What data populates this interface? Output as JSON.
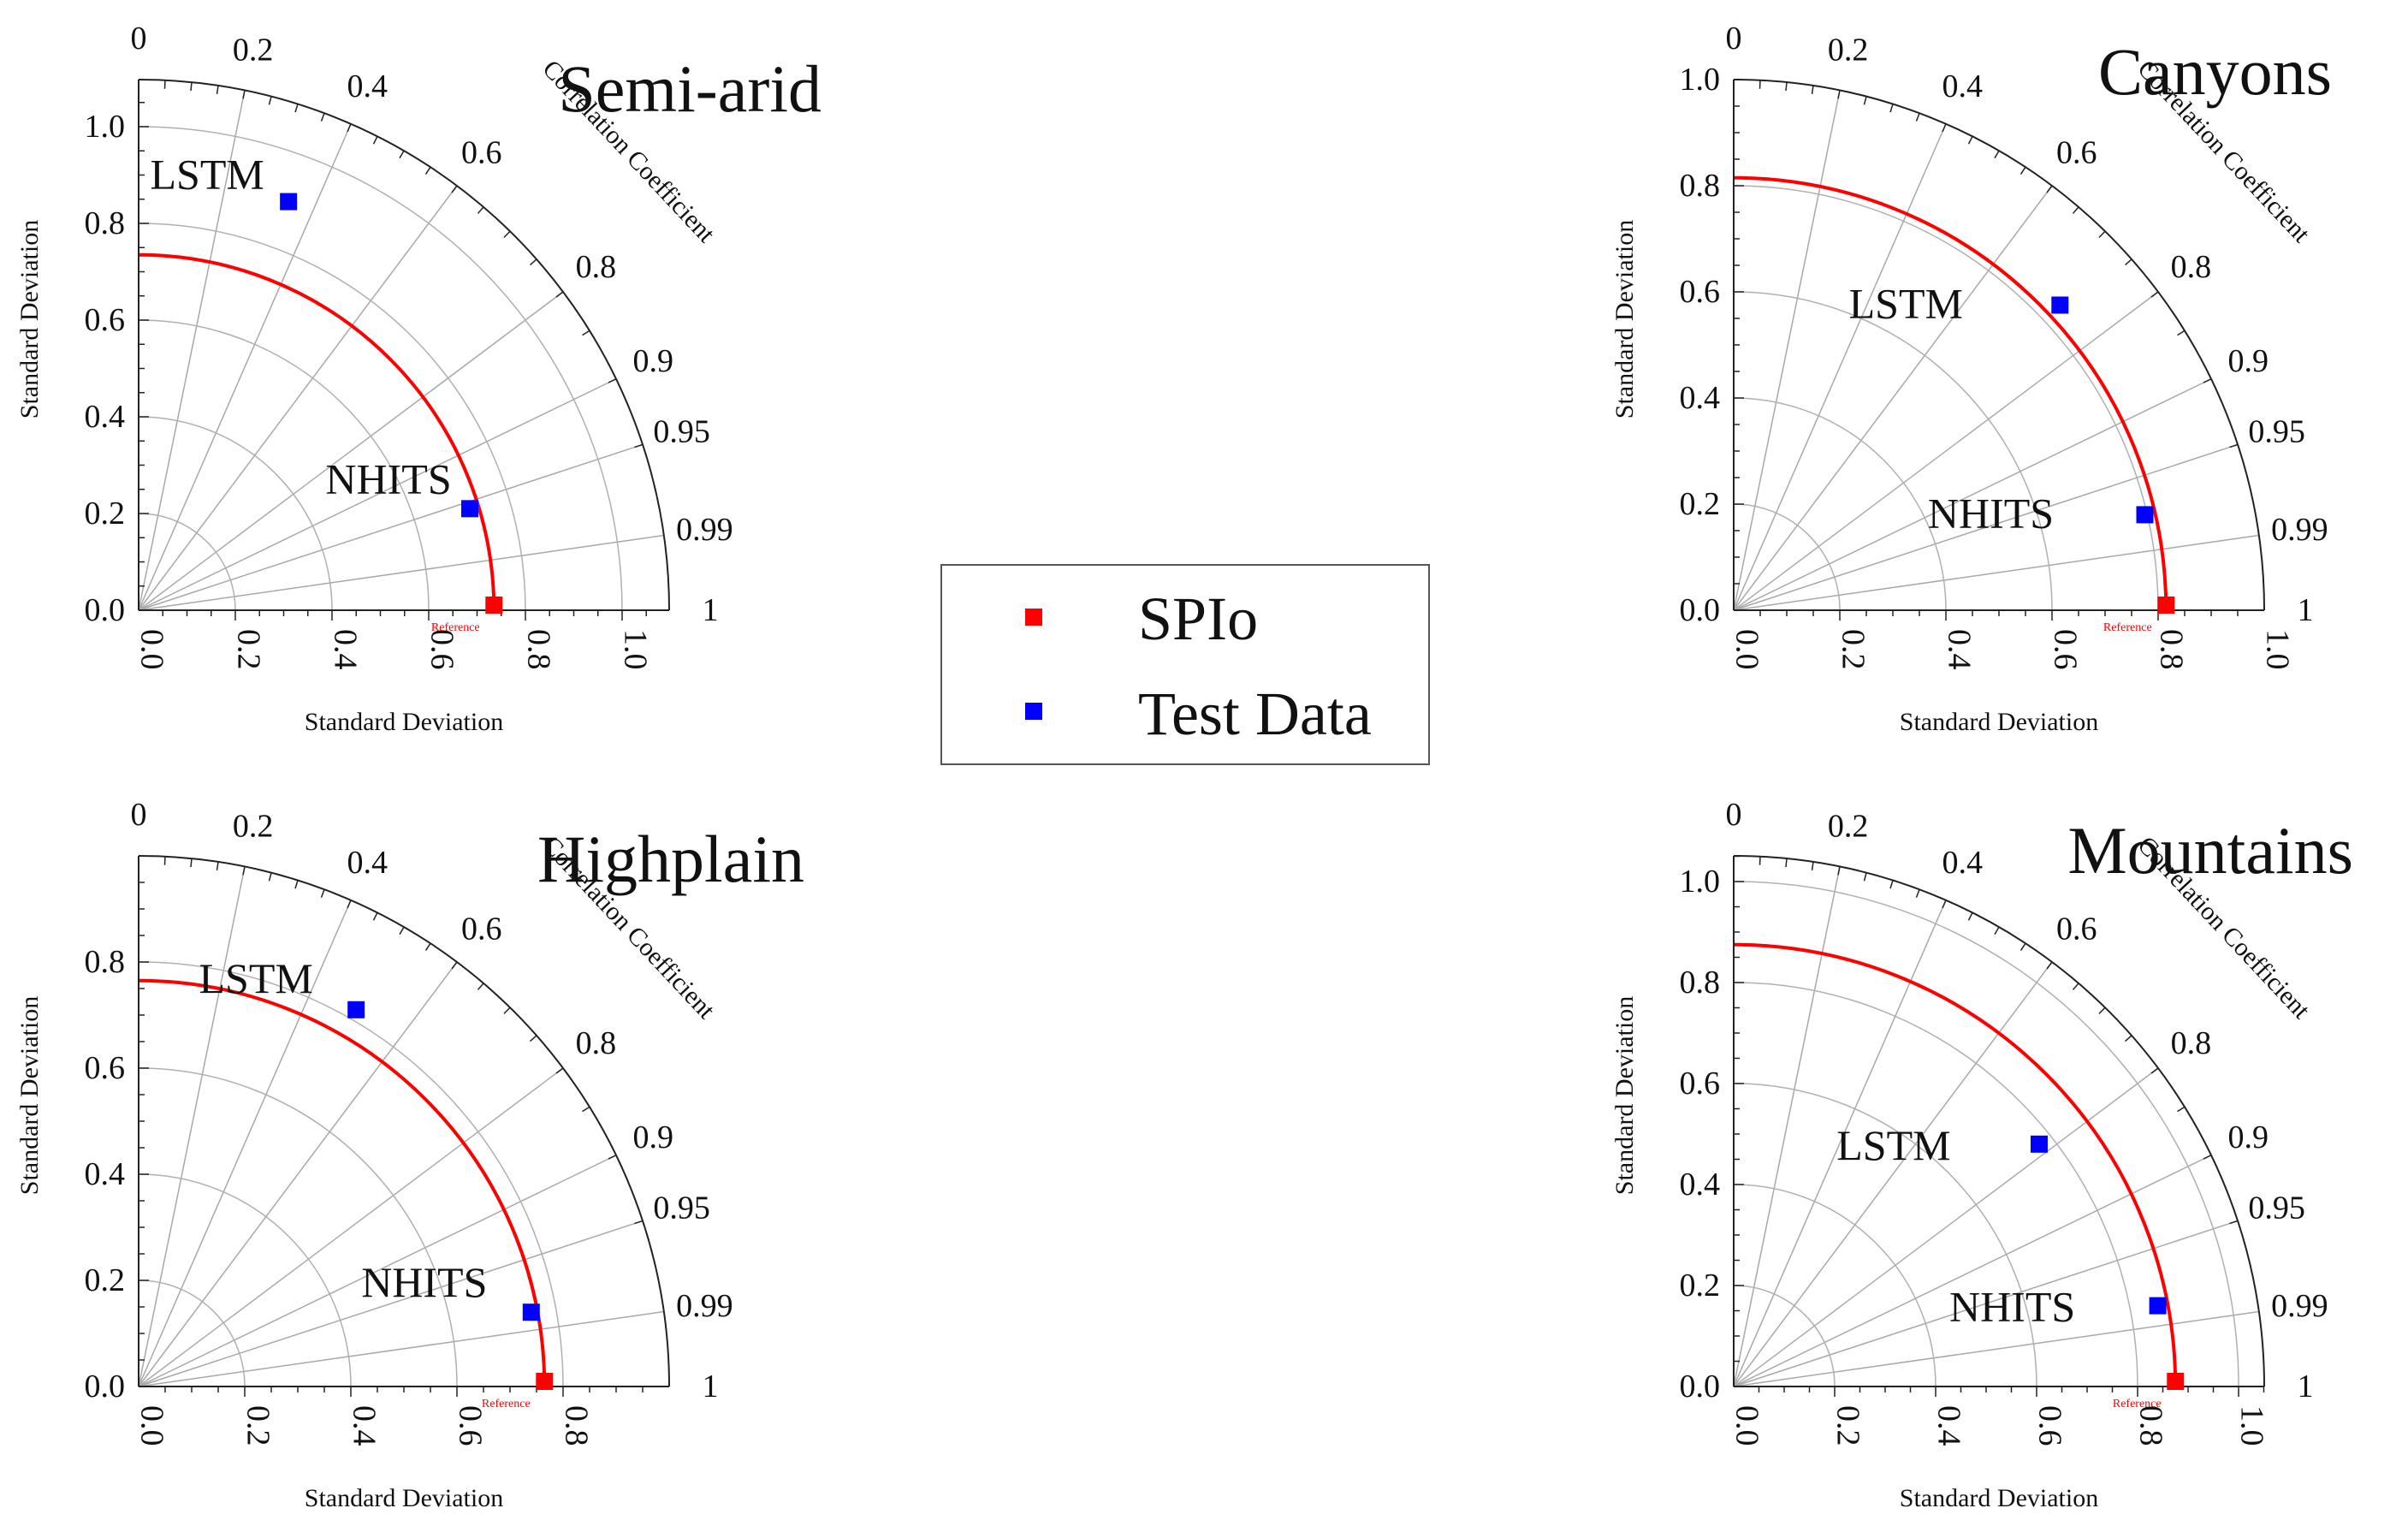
{
  "legend": {
    "items": [
      {
        "label": "SPIo",
        "color": "#ff0000"
      },
      {
        "label": "Test Data",
        "color": "#0000ff"
      }
    ]
  },
  "chart_data": [
    {
      "type": "taylor",
      "title": "Semi-arid",
      "xlabel": "Standard Deviation",
      "ylabel": "Standard Deviation",
      "corr_title": "Correlation Coefficient",
      "xticks": [
        "0.0",
        "0.2",
        "0.4",
        "0.6",
        "0.8",
        "1.0"
      ],
      "yticks": [
        "0.0",
        "0.2",
        "0.4",
        "0.6",
        "0.8",
        "1.0"
      ],
      "max_sd": 1.1,
      "corr_labels": [
        "0",
        "0.2",
        "0.4",
        "0.6",
        "0.8",
        "0.9",
        "0.95",
        "0.99",
        "1"
      ],
      "reference": {
        "label": "Reference",
        "sd": 0.735
      },
      "points": [
        {
          "label": "LSTM",
          "x": 0.31,
          "y": 0.845
        },
        {
          "label": "NHITS",
          "x": 0.685,
          "y": 0.21
        }
      ]
    },
    {
      "type": "taylor",
      "title": "Canyons",
      "xlabel": "Standard Deviation",
      "ylabel": "Standard Deviation",
      "corr_title": "Correlation Coefficient",
      "xticks": [
        "0.0",
        "0.2",
        "0.4",
        "0.6",
        "0.8",
        "1.0"
      ],
      "yticks": [
        "0.0",
        "0.2",
        "0.4",
        "0.6",
        "0.8",
        "1.0"
      ],
      "max_sd": 1.0,
      "corr_labels": [
        "0",
        "0.2",
        "0.4",
        "0.6",
        "0.8",
        "0.9",
        "0.95",
        "0.99",
        "1"
      ],
      "reference": {
        "label": "Reference",
        "sd": 0.815
      },
      "points": [
        {
          "label": "LSTM",
          "x": 0.615,
          "y": 0.575
        },
        {
          "label": "NHITS",
          "x": 0.775,
          "y": 0.18
        }
      ]
    },
    {
      "type": "taylor",
      "title": "Highplain",
      "xlabel": "Standard Deviation",
      "ylabel": "Standard Deviation",
      "corr_title": "Correlation Coefficient",
      "xticks": [
        "0.0",
        "0.2",
        "0.4",
        "0.6",
        "0.8"
      ],
      "yticks": [
        "0.0",
        "0.2",
        "0.4",
        "0.6",
        "0.8"
      ],
      "max_sd": 1.0,
      "corr_labels": [
        "0",
        "0.2",
        "0.4",
        "0.6",
        "0.8",
        "0.9",
        "0.95",
        "0.99",
        "1"
      ],
      "reference": {
        "label": "Reference",
        "sd": 0.765
      },
      "points": [
        {
          "label": "LSTM",
          "x": 0.41,
          "y": 0.71
        },
        {
          "label": "NHITS",
          "x": 0.74,
          "y": 0.14
        }
      ]
    },
    {
      "type": "taylor",
      "title": "Mountains",
      "xlabel": "Standard Deviation",
      "ylabel": "Standard Deviation",
      "corr_title": "Correlation Coefficient",
      "xticks": [
        "0.0",
        "0.2",
        "0.4",
        "0.6",
        "0.8",
        "1.0"
      ],
      "yticks": [
        "0.0",
        "0.2",
        "0.4",
        "0.6",
        "0.8",
        "1.0"
      ],
      "max_sd": 1.05,
      "corr_labels": [
        "0",
        "0.2",
        "0.4",
        "0.6",
        "0.8",
        "0.9",
        "0.95",
        "0.99",
        "1"
      ],
      "reference": {
        "label": "Reference",
        "sd": 0.875
      },
      "points": [
        {
          "label": "LSTM",
          "x": 0.605,
          "y": 0.48
        },
        {
          "label": "NHITS",
          "x": 0.84,
          "y": 0.16
        }
      ]
    }
  ]
}
